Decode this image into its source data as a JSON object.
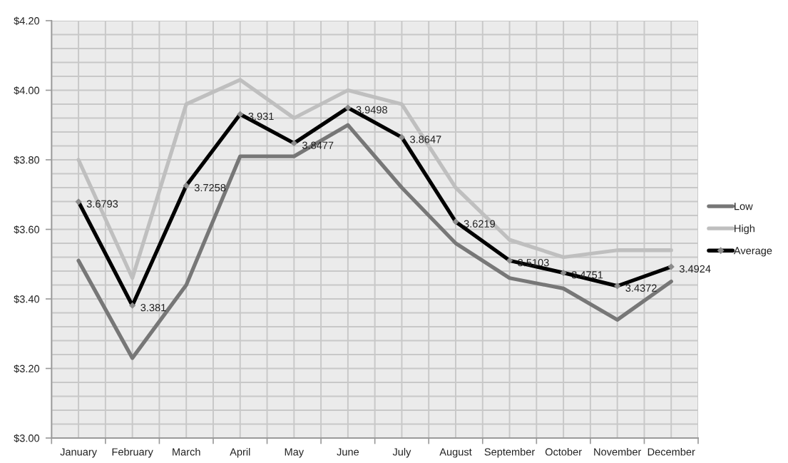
{
  "chart_data": {
    "type": "line",
    "categories": [
      "January",
      "February",
      "March",
      "April",
      "May",
      "June",
      "July",
      "August",
      "September",
      "October",
      "November",
      "December"
    ],
    "series": [
      {
        "name": "Low",
        "color": "#777777",
        "values": [
          3.51,
          3.23,
          3.44,
          3.81,
          3.81,
          3.9,
          3.72,
          3.56,
          3.46,
          3.43,
          3.34,
          3.45
        ]
      },
      {
        "name": "High",
        "color": "#bfbfbf",
        "values": [
          3.8,
          3.46,
          3.96,
          4.03,
          3.92,
          4.0,
          3.96,
          3.72,
          3.57,
          3.52,
          3.54,
          3.54
        ]
      },
      {
        "name": "Average",
        "color": "#000000",
        "marker": "diamond",
        "colors": [
          "#8c8c8c",
          "#8c8c8c",
          "#8c8c8c",
          "#8c8c8c",
          "#8c8c8c",
          "#8c8c8c",
          "#8c8c8c",
          "#8c8c8c",
          "#8c8c8c",
          "#8c8c8c",
          "#8c8c8c",
          "#8c8c8c"
        ],
        "data_labels": true,
        "values": [
          3.6793,
          3.381,
          3.7258,
          3.931,
          3.8477,
          3.9498,
          3.8647,
          3.6219,
          3.5103,
          3.4751,
          3.4372,
          3.4924
        ]
      }
    ],
    "ylim": [
      3.0,
      4.2
    ],
    "yticks": [
      {
        "value": 3.0,
        "label": "$3.00"
      },
      {
        "value": 3.04,
        "label": null
      },
      {
        "value": 3.08,
        "label": null
      },
      {
        "value": 3.12,
        "label": null
      },
      {
        "value": 3.16,
        "label": null
      },
      {
        "value": 3.2,
        "label": "$3.20"
      },
      {
        "value": 3.24,
        "label": null
      },
      {
        "value": 3.28,
        "label": null
      },
      {
        "value": 3.32,
        "label": null
      },
      {
        "value": 3.36,
        "label": null
      },
      {
        "value": 3.4,
        "label": "$3.40"
      },
      {
        "value": 3.44,
        "label": null
      },
      {
        "value": 3.48,
        "label": null
      },
      {
        "value": 3.52,
        "label": null
      },
      {
        "value": 3.56,
        "label": null
      },
      {
        "value": 3.6,
        "label": "$3.60"
      },
      {
        "value": 3.64,
        "label": null
      },
      {
        "value": 3.68,
        "label": null
      },
      {
        "value": 3.72,
        "label": null
      },
      {
        "value": 3.76,
        "label": null
      },
      {
        "value": 3.8,
        "label": "$3.80"
      },
      {
        "value": 3.84,
        "label": null
      },
      {
        "value": 3.88,
        "label": null
      },
      {
        "value": 3.92,
        "label": null
      },
      {
        "value": 3.96,
        "label": null
      },
      {
        "value": 4.0,
        "label": "$4.00"
      },
      {
        "value": 4.04,
        "label": null
      },
      {
        "value": 4.08,
        "label": null
      },
      {
        "value": 4.12,
        "label": null
      },
      {
        "value": 4.16,
        "label": null
      },
      {
        "value": 4.2,
        "label": "$4.20"
      }
    ],
    "grid": true,
    "legend": "right"
  }
}
